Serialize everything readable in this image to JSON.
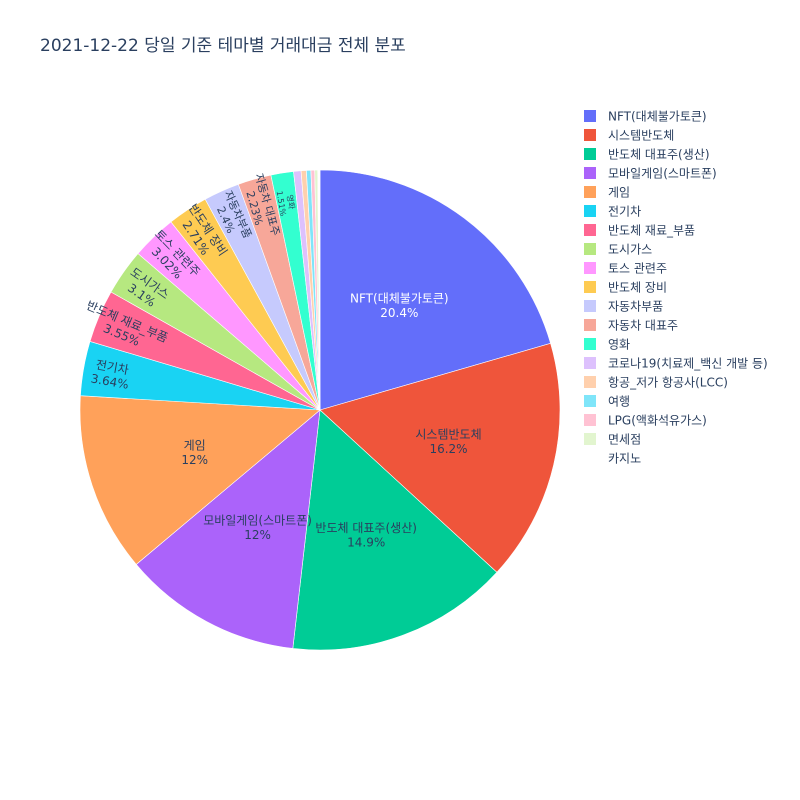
{
  "chart_data": {
    "type": "pie",
    "title": "2021-12-22 당일 기준 테마별 거래대금 전체 분포",
    "legend_position": "right",
    "sort": "descending",
    "direction": "clockwise",
    "slices": [
      {
        "label": "NFT(대체불가토큰)",
        "percent_label": "20.4%",
        "value": 20.4,
        "color": "#636efa",
        "text_color": "#ffffff"
      },
      {
        "label": "시스템반도체",
        "percent_label": "16.2%",
        "value": 16.2,
        "color": "#EF553B",
        "text_color": "#2a3f5f"
      },
      {
        "label": "반도체 대표주(생산)",
        "percent_label": "14.9%",
        "value": 14.9,
        "color": "#00cc96",
        "text_color": "#2a3f5f"
      },
      {
        "label": "모바일게임(스마트폰)",
        "percent_label": "12%",
        "value": 12.0,
        "color": "#ab63fa",
        "text_color": "#2a3f5f"
      },
      {
        "label": "게임",
        "percent_label": "12%",
        "value": 12.0,
        "color": "#FFA15A",
        "text_color": "#2a3f5f"
      },
      {
        "label": "전기차",
        "percent_label": "3.64%",
        "value": 3.64,
        "color": "#19d3f3",
        "text_color": "#2a3f5f"
      },
      {
        "label": "반도체 재료_부품",
        "percent_label": "3.55%",
        "value": 3.55,
        "color": "#FF6692",
        "text_color": "#2a3f5f"
      },
      {
        "label": "도시가스",
        "percent_label": "3.1%",
        "value": 3.1,
        "color": "#B6E880",
        "text_color": "#2a3f5f"
      },
      {
        "label": "토스 관련주",
        "percent_label": "3.02%",
        "value": 3.02,
        "color": "#FF97FF",
        "text_color": "#2a3f5f"
      },
      {
        "label": "반도체 장비",
        "percent_label": "2.71%",
        "value": 2.71,
        "color": "#FECB52",
        "text_color": "#2a3f5f"
      },
      {
        "label": "자동차부품",
        "percent_label": "2.4%",
        "value": 2.4,
        "color": "#c6cafd",
        "text_color": "#2a3f5f"
      },
      {
        "label": "자동차 대표주",
        "percent_label": "2.23%",
        "value": 2.23,
        "color": "#f7a799",
        "text_color": "#2a3f5f"
      },
      {
        "label": "영화",
        "percent_label": "1.51%",
        "value": 1.51,
        "color": "#33ffd0",
        "text_color": "#2a3f5f"
      },
      {
        "label": "코로나19(치료제_백신 개발 등)",
        "percent_label": "",
        "value": 0.5,
        "color": "#ddc1fd",
        "text_color": "#2a3f5f"
      },
      {
        "label": "항공_저가 항공사(LCC)",
        "percent_label": "",
        "value": 0.35,
        "color": "#ffd0ad",
        "text_color": "#2a3f5f"
      },
      {
        "label": "여행",
        "percent_label": "",
        "value": 0.3,
        "color": "#7fe5f9",
        "text_color": "#2a3f5f"
      },
      {
        "label": "LPG(액화석유가스)",
        "percent_label": "",
        "value": 0.25,
        "color": "#ffc2d3",
        "text_color": "#2a3f5f"
      },
      {
        "label": "면세점",
        "percent_label": "",
        "value": 0.2,
        "color": "#e2f5cf",
        "text_color": "#2a3f5f"
      },
      {
        "label": "카지노",
        "percent_label": "",
        "value": 0.15,
        "color": "#ffffff",
        "text_color": "#2a3f5f"
      }
    ]
  }
}
